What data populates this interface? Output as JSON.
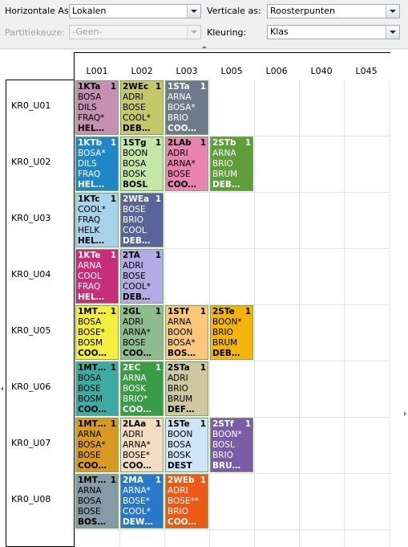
{
  "toolbar": {
    "horizontal_label": "Horizontale As:",
    "horizontal_value": "Lokalen",
    "vertical_label": "Verticale as:",
    "vertical_value": "Roosterpunten",
    "partition_label": "Partitiekeuze:",
    "partition_value": "-Geen-",
    "coloring_label": "Kleuring:",
    "coloring_value": "Klas"
  },
  "columns": [
    "L001",
    "L002",
    "L003",
    "L005",
    "L006",
    "L040",
    "L045"
  ],
  "rows": [
    {
      "label": "KR0_U01",
      "cells": [
        {
          "col": 0,
          "name": "1KTa",
          "count": "1",
          "lines": [
            "BOSA",
            "DILS",
            "FRAQ*",
            "HEL…"
          ],
          "color": "#c68fb4",
          "dark": false
        },
        {
          "col": 1,
          "name": "2WEc",
          "count": "1",
          "lines": [
            "ADRI",
            "BOSE",
            "COOL*",
            "DEB…"
          ],
          "color": "#c4c86a",
          "dark": false
        },
        {
          "col": 2,
          "name": "1STa",
          "count": "1",
          "lines": [
            "ARNA",
            "BOSA*",
            "BRIO",
            "COO…"
          ],
          "color": "#6e7a8c",
          "dark": true
        }
      ]
    },
    {
      "label": "KR0_U02",
      "cells": [
        {
          "col": 0,
          "name": "1KTb",
          "count": "1",
          "lines": [
            "BOSA*",
            "DILS",
            "FRAQ",
            "HEL…"
          ],
          "color": "#1f86c8",
          "dark": true
        },
        {
          "col": 1,
          "name": "1STg",
          "count": "1",
          "lines": [
            "BOON",
            "BOSA",
            "BOSK",
            "BOSL"
          ],
          "color": "#c4e6a6",
          "dark": false
        },
        {
          "col": 2,
          "name": "2LAb",
          "count": "1",
          "lines": [
            "ADRI",
            "ARNA*",
            "BOSE",
            "COO…"
          ],
          "color": "#e883b2",
          "dark": false
        },
        {
          "col": 3,
          "name": "2STb",
          "count": "1",
          "lines": [
            "ARNA",
            "BRIO",
            "BRUM",
            "DEB…"
          ],
          "color": "#5f9e3a",
          "dark": true
        }
      ]
    },
    {
      "label": "KR0_U03",
      "cells": [
        {
          "col": 0,
          "name": "1KTc",
          "count": "1",
          "lines": [
            "COOL*",
            "FRAQ",
            "HELK",
            "HEL…"
          ],
          "color": "#a9d2ec",
          "dark": false
        },
        {
          "col": 1,
          "name": "2WEa",
          "count": "1",
          "lines": [
            "BOSE",
            "BRIO",
            "COOL",
            "DEB…"
          ],
          "color": "#59659a",
          "dark": true
        }
      ]
    },
    {
      "label": "KR0_U04",
      "cells": [
        {
          "col": 0,
          "name": "1KTe",
          "count": "1",
          "lines": [
            "ARNA",
            "COOL",
            "FRAQ",
            "HEL…"
          ],
          "color": "#c72d78",
          "dark": true
        },
        {
          "col": 1,
          "name": "2TA",
          "count": "1",
          "lines": [
            "ADRI",
            "BOSE",
            "COOL*",
            "DEB…"
          ],
          "color": "#b4aae4",
          "dark": false
        }
      ]
    },
    {
      "label": "KR0_U05",
      "cells": [
        {
          "col": 0,
          "name": "1MT…",
          "count": "1",
          "lines": [
            "BOSA",
            "BOSE*",
            "BOSM",
            "COO…"
          ],
          "color": "#f4ee3c",
          "dark": false
        },
        {
          "col": 1,
          "name": "2GL",
          "count": "1",
          "lines": [
            "ADRI",
            "ARNA*",
            "BOSE",
            "COO…"
          ],
          "color": "#8fbc8f",
          "dark": false
        },
        {
          "col": 2,
          "name": "1STf",
          "count": "1",
          "lines": [
            "ARNA",
            "BOON",
            "BOSA*",
            "BOS…"
          ],
          "color": "#fcc77a",
          "dark": false
        },
        {
          "col": 3,
          "name": "2STe",
          "count": "1",
          "lines": [
            "BOON*",
            "BRIO",
            "BRUM",
            "DEB…"
          ],
          "color": "#f4b40c",
          "dark": false
        }
      ]
    },
    {
      "label": "KR0_U06",
      "cells": [
        {
          "col": 0,
          "name": "1MT…",
          "count": "1",
          "lines": [
            "BOSA",
            "BOSE",
            "BOSM",
            "COO…"
          ],
          "color": "#3eaaa4",
          "dark": false
        },
        {
          "col": 1,
          "name": "2EC",
          "count": "1",
          "lines": [
            "ARNA",
            "BOSK",
            "BRIO*",
            "COO…"
          ],
          "color": "#3a9c48",
          "dark": true
        },
        {
          "col": 2,
          "name": "2STa",
          "count": "1",
          "lines": [
            "ADRI",
            "BRIO",
            "BRUM",
            "DEF…"
          ],
          "color": "#d0c6a0",
          "dark": false
        }
      ]
    },
    {
      "label": "KR0_U07",
      "cells": [
        {
          "col": 0,
          "name": "1MT…",
          "count": "1",
          "lines": [
            "ARNA",
            "BOSA*",
            "BOSE",
            "COO…"
          ],
          "color": "#d89a22",
          "dark": false
        },
        {
          "col": 1,
          "name": "2LAa",
          "count": "1",
          "lines": [
            "ADRI",
            "ARNA*",
            "BOSE*",
            "COO…"
          ],
          "color": "#f4dcc2",
          "dark": false
        },
        {
          "col": 2,
          "name": "1STe",
          "count": "1",
          "lines": [
            "BOON",
            "BOSA",
            "BOSK",
            "DEST"
          ],
          "color": "#cfe4f6",
          "dark": false
        },
        {
          "col": 3,
          "name": "2STf",
          "count": "1",
          "lines": [
            "BOON*",
            "BOSL",
            "BRIO",
            "BRU…"
          ],
          "color": "#7a5ca8",
          "dark": true
        }
      ]
    },
    {
      "label": "KR0_U08",
      "cells": [
        {
          "col": 0,
          "name": "1MT…",
          "count": "1",
          "lines": [
            "ARNA",
            "BOSA",
            "BOSE",
            "BOS…"
          ],
          "color": "#869aa8",
          "dark": false
        },
        {
          "col": 1,
          "name": "2MA",
          "count": "1",
          "lines": [
            "ARNA*",
            "BOSE*",
            "COOL*",
            "DEW…"
          ],
          "color": "#2a78c8",
          "dark": true
        },
        {
          "col": 2,
          "name": "2WEb",
          "count": "1",
          "lines": [
            "ADRI",
            "BOSE**",
            "BRIO",
            "COO…"
          ],
          "color": "#ec5a18",
          "dark": true
        }
      ]
    }
  ]
}
